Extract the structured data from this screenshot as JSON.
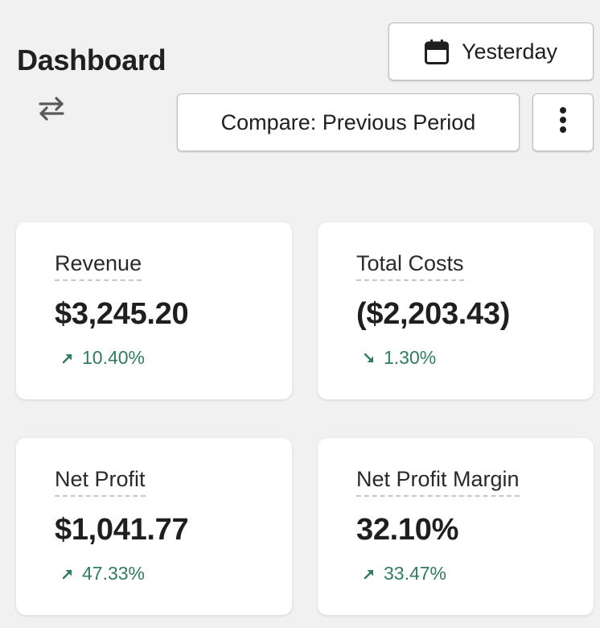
{
  "header": {
    "title": "Dashboard",
    "date_button_label": "Yesterday",
    "compare_button_label": "Compare: Previous Period"
  },
  "icons": {
    "swap": "swap-arrows-icon",
    "calendar": "calendar-icon",
    "more": "vertical-dots-icon",
    "trend_up": "arrow-up-right-icon",
    "trend_down": "arrow-down-right-icon"
  },
  "colors": {
    "positive_change": "#2f7d5c",
    "background": "#f1f1f1",
    "card": "#ffffff"
  },
  "metrics": [
    {
      "label": "Revenue",
      "value": "$3,245.20",
      "change": "10.40%",
      "direction": "up"
    },
    {
      "label": "Total Costs",
      "value": "($2,203.43)",
      "change": "1.30%",
      "direction": "down"
    },
    {
      "label": "Net Profit",
      "value": "$1,041.77",
      "change": "47.33%",
      "direction": "up"
    },
    {
      "label": "Net Profit Margin",
      "value": "32.10%",
      "change": "33.47%",
      "direction": "up"
    }
  ]
}
